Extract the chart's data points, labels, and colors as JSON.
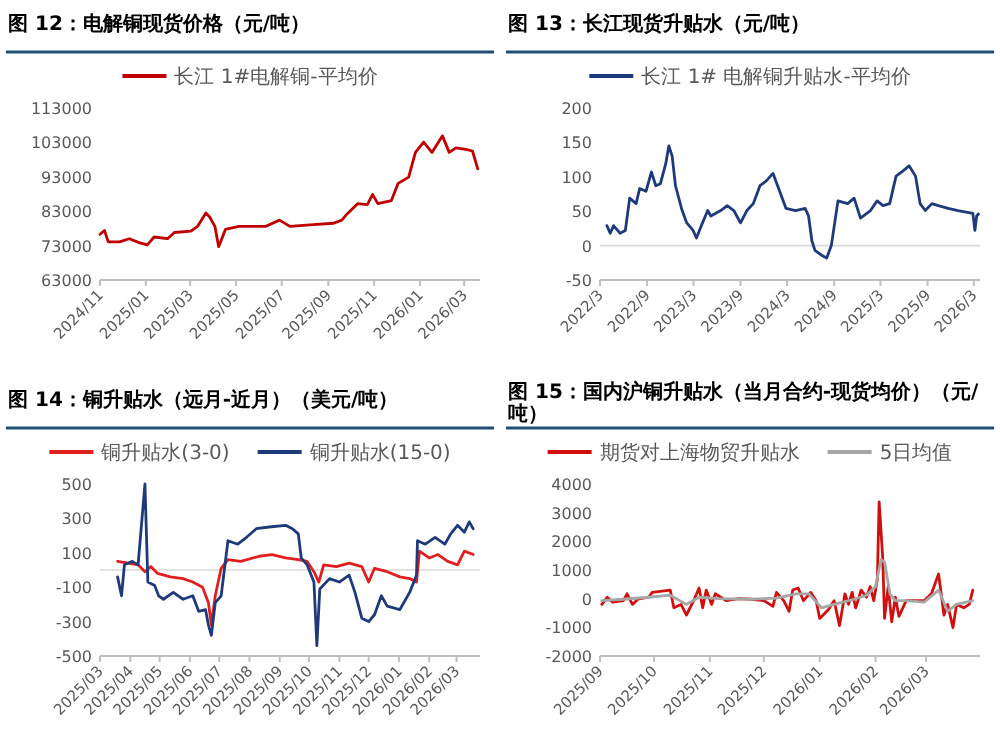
{
  "chart_data": [
    {
      "type": "line",
      "title": "图 12：电解铜现货价格（元/吨）",
      "legend": "top",
      "xlim": [
        "2024-11-01",
        "2026-03-22"
      ],
      "ylim": [
        63000,
        113000
      ],
      "yticks": [
        63000,
        73000,
        83000,
        93000,
        103000,
        113000
      ],
      "xticks": [
        {
          "value": "2024-11",
          "label": "2024/11"
        },
        {
          "value": "2025-01",
          "label": "2025/01"
        },
        {
          "value": "2025-03",
          "label": "2025/03"
        },
        {
          "value": "2025-05",
          "label": "2025/05"
        },
        {
          "value": "2025-07",
          "label": "2025/07"
        },
        {
          "value": "2025-09",
          "label": "2025/09"
        },
        {
          "value": "2025-11",
          "label": "2025/11"
        },
        {
          "value": "2026-01",
          "label": "2026/01"
        },
        {
          "value": "2026-03",
          "label": "2026/03"
        }
      ],
      "series": [
        {
          "name": "长江 1#电解铜-平均价",
          "color": "#c00000",
          "x": [
            "2024-11-01",
            "2024-11-07",
            "2024-11-12",
            "2024-11-27",
            "2024-12-10",
            "2024-12-24",
            "2025-01-03",
            "2025-01-12",
            "2025-01-30",
            "2025-02-08",
            "2025-03-02",
            "2025-03-11",
            "2025-03-22",
            "2025-03-27",
            "2025-04-03",
            "2025-04-08",
            "2025-04-17",
            "2025-05-05",
            "2025-06-10",
            "2025-06-28",
            "2025-07-12",
            "2025-08-12",
            "2025-09-08",
            "2025-09-19",
            "2025-09-26",
            "2025-10-10",
            "2025-10-23",
            "2025-10-30",
            "2025-11-06",
            "2025-11-24",
            "2025-12-03",
            "2025-12-17",
            "2025-12-26",
            "2026-01-06",
            "2026-01-17",
            "2026-01-31",
            "2026-02-09",
            "2026-02-18",
            "2026-03-03",
            "2026-03-12",
            "2026-03-19"
          ],
          "values": [
            76300,
            77400,
            74100,
            74100,
            75000,
            73800,
            73200,
            75500,
            75000,
            76800,
            77200,
            78600,
            82500,
            81300,
            78600,
            72700,
            77700,
            78600,
            78600,
            80400,
            78600,
            79100,
            79500,
            80400,
            82200,
            85200,
            84900,
            87900,
            85200,
            86100,
            91100,
            92900,
            100100,
            103100,
            100100,
            104900,
            100100,
            101400,
            101000,
            100500,
            95300
          ]
        }
      ]
    },
    {
      "type": "line",
      "title": "图 13：长江现货升贴水（元/吨）",
      "legend": "top",
      "xlim": [
        "2022-03-01",
        "2026-03-25"
      ],
      "ylim": [
        -50,
        200
      ],
      "yticks": [
        -50,
        0,
        50,
        100,
        150,
        200
      ],
      "ref_lines": [
        {
          "axis": "y",
          "value": 0,
          "color": "#d9d9d9"
        }
      ],
      "xticks": [
        {
          "value": "2022-03",
          "label": "2022/3"
        },
        {
          "value": "2022-09",
          "label": "2022/9"
        },
        {
          "value": "2023-03",
          "label": "2023/3"
        },
        {
          "value": "2023-09",
          "label": "2023/9"
        },
        {
          "value": "2024-03",
          "label": "2024/3"
        },
        {
          "value": "2024-09",
          "label": "2024/9"
        },
        {
          "value": "2025-03",
          "label": "2025/3"
        },
        {
          "value": "2025-09",
          "label": "2025/9"
        },
        {
          "value": "2026-03",
          "label": "2026/3"
        }
      ],
      "series": [
        {
          "name": "长江 1# 电解铜升贴水-平均价",
          "color": "#1f3a7a",
          "x": [
            "2022-03-28",
            "2022-04-10",
            "2022-04-23",
            "2022-05-18",
            "2022-06-08",
            "2022-06-25",
            "2022-07-20",
            "2022-08-03",
            "2022-08-28",
            "2022-09-18",
            "2022-10-05",
            "2022-10-23",
            "2022-11-13",
            "2022-11-25",
            "2022-12-08",
            "2022-12-21",
            "2023-01-16",
            "2023-02-03",
            "2023-02-28",
            "2023-03-13",
            "2023-04-01",
            "2023-04-26",
            "2023-05-08",
            "2023-06-16",
            "2023-07-11",
            "2023-08-06",
            "2023-09-01",
            "2023-09-26",
            "2023-10-21",
            "2023-11-16",
            "2023-12-11",
            "2024-01-06",
            "2024-02-01",
            "2024-02-26",
            "2024-04-03",
            "2024-05-11",
            "2024-05-24",
            "2024-06-06",
            "2024-06-18",
            "2024-07-14",
            "2024-08-03",
            "2024-08-21",
            "2024-09-16",
            "2024-10-24",
            "2024-11-18",
            "2024-12-13",
            "2025-01-21",
            "2025-02-16",
            "2025-03-11",
            "2025-04-06",
            "2025-05-01",
            "2025-05-26",
            "2025-06-21",
            "2025-07-16",
            "2025-08-03",
            "2025-08-23",
            "2025-09-18",
            "2025-10-13",
            "2025-11-21",
            "2025-12-29",
            "2026-02-25",
            "2026-03-05",
            "2026-03-12",
            "2026-03-19"
          ],
          "values": [
            29,
            18,
            29,
            18,
            22,
            69,
            61,
            83,
            79,
            107,
            87,
            90,
            119,
            145,
            130,
            87,
            51,
            33,
            22,
            11,
            29,
            51,
            43,
            51,
            58,
            51,
            33,
            51,
            61,
            87,
            94,
            105,
            79,
            54,
            51,
            54,
            43,
            7,
            -7,
            -14,
            -18,
            0,
            65,
            61,
            69,
            40,
            51,
            65,
            58,
            61,
            101,
            108,
            116,
            101,
            61,
            51,
            61,
            58,
            54,
            51,
            47,
            22,
            43,
            46
          ]
        }
      ]
    },
    {
      "type": "line",
      "title": "图 14：铜升贴水（远月-近月）（美元/吨）",
      "legend": "top",
      "xlim": [
        "2025-03-01",
        "2026-03-25"
      ],
      "ylim": [
        -500,
        500
      ],
      "yticks": [
        -500,
        -300,
        -100,
        100,
        300,
        500
      ],
      "ref_lines": [
        {
          "axis": "y",
          "value": 0,
          "color": "#d9d9d9"
        }
      ],
      "xticks": [
        {
          "value": "2025-03",
          "label": "2025/03"
        },
        {
          "value": "2025-04",
          "label": "2025/04"
        },
        {
          "value": "2025-05",
          "label": "2025/05"
        },
        {
          "value": "2025-06",
          "label": "2025/06"
        },
        {
          "value": "2025-07",
          "label": "2025/07"
        },
        {
          "value": "2025-08",
          "label": "2025/08"
        },
        {
          "value": "2025-09",
          "label": "2025/09"
        },
        {
          "value": "2025-10",
          "label": "2025/10"
        },
        {
          "value": "2025-11",
          "label": "2025/11"
        },
        {
          "value": "2025-12",
          "label": "2025/12"
        },
        {
          "value": "2026-01",
          "label": "2026/01"
        },
        {
          "value": "2026-02",
          "label": "2026/02"
        },
        {
          "value": "2026-03",
          "label": "2026/03"
        }
      ],
      "series": [
        {
          "name": "铜升贴水(3-0)",
          "color": "#e02020",
          "x": [
            "2025-03-19",
            "2025-03-30",
            "2025-04-09",
            "2025-04-16",
            "2025-04-22",
            "2025-04-29",
            "2025-05-12",
            "2025-05-25",
            "2025-06-04",
            "2025-06-14",
            "2025-06-20",
            "2025-06-23",
            "2025-06-27",
            "2025-07-03",
            "2025-07-10",
            "2025-07-23",
            "2025-08-11",
            "2025-08-24",
            "2025-09-07",
            "2025-09-20",
            "2025-09-29",
            "2025-10-06",
            "2025-10-11",
            "2025-10-16",
            "2025-10-29",
            "2025-11-11",
            "2025-11-24",
            "2025-12-01",
            "2025-12-07",
            "2025-12-20",
            "2026-01-02",
            "2026-01-12",
            "2026-01-19",
            "2026-01-22",
            "2026-02-01",
            "2026-02-10",
            "2026-02-20",
            "2026-03-02",
            "2026-03-09",
            "2026-03-18"
          ],
          "values": [
            50,
            40,
            30,
            -10,
            20,
            -20,
            -40,
            -50,
            -70,
            -100,
            -190,
            -320,
            -150,
            10,
            60,
            50,
            80,
            90,
            70,
            60,
            50,
            -10,
            -70,
            30,
            20,
            40,
            20,
            -70,
            10,
            -10,
            -40,
            -50,
            -70,
            110,
            70,
            90,
            50,
            30,
            110,
            90
          ]
        },
        {
          "name": "铜升贴水(15-0)",
          "color": "#1f3a7a",
          "x": [
            "2025-03-19",
            "2025-03-23",
            "2025-03-26",
            "2025-04-03",
            "2025-04-09",
            "2025-04-16",
            "2025-04-19",
            "2025-04-26",
            "2025-04-30",
            "2025-05-05",
            "2025-05-15",
            "2025-05-25",
            "2025-06-04",
            "2025-06-10",
            "2025-06-17",
            "2025-06-20",
            "2025-06-23",
            "2025-06-27",
            "2025-07-03",
            "2025-07-10",
            "2025-07-20",
            "2025-07-29",
            "2025-08-08",
            "2025-08-21",
            "2025-09-07",
            "2025-09-14",
            "2025-09-20",
            "2025-09-23",
            "2025-09-29",
            "2025-10-06",
            "2025-10-09",
            "2025-10-12",
            "2025-10-22",
            "2025-11-01",
            "2025-11-11",
            "2025-11-17",
            "2025-11-24",
            "2025-12-01",
            "2025-12-07",
            "2025-12-14",
            "2025-12-20",
            "2026-01-02",
            "2026-01-12",
            "2026-01-19",
            "2026-01-20",
            "2026-01-28",
            "2026-02-07",
            "2026-02-17",
            "2026-02-23",
            "2026-03-02",
            "2026-03-09",
            "2026-03-14",
            "2026-03-18"
          ],
          "values": [
            -40,
            -150,
            30,
            50,
            30,
            500,
            -70,
            -90,
            -150,
            -170,
            -130,
            -170,
            -150,
            -240,
            -230,
            -320,
            -380,
            -190,
            -150,
            170,
            150,
            190,
            240,
            250,
            260,
            240,
            210,
            70,
            30,
            -70,
            -440,
            -110,
            -50,
            -70,
            -30,
            -130,
            -280,
            -300,
            -260,
            -150,
            -210,
            -230,
            -130,
            -30,
            170,
            150,
            190,
            150,
            210,
            260,
            220,
            280,
            240
          ]
        }
      ]
    },
    {
      "type": "line",
      "title": "图 15：国内沪铜升贴水（当月合约-现货均价）（元/吨）",
      "legend": "top",
      "xlim": [
        "2025-09-01",
        "2026-03-31"
      ],
      "ylim": [
        -2000,
        4000
      ],
      "yticks": [
        -2000,
        -1000,
        0,
        1000,
        2000,
        3000,
        4000
      ],
      "xticks": [
        {
          "value": "2025-09",
          "label": "2025/09"
        },
        {
          "value": "2025-10",
          "label": "2025/10"
        },
        {
          "value": "2025-11",
          "label": "2025/11"
        },
        {
          "value": "2025-12",
          "label": "2025/12"
        },
        {
          "value": "2026-01",
          "label": "2026/01"
        },
        {
          "value": "2026-02",
          "label": "2026/02"
        },
        {
          "value": "2026-03",
          "label": "2026/03"
        }
      ],
      "series": [
        {
          "name": "期货对上海物贸升贴水",
          "color": "#d01010",
          "x": [
            "2025-09-02",
            "2025-09-05",
            "2025-09-08",
            "2025-09-14",
            "2025-09-16",
            "2025-09-19",
            "2025-09-22",
            "2025-09-28",
            "2025-09-30",
            "2025-10-10",
            "2025-10-12",
            "2025-10-16",
            "2025-10-19",
            "2025-10-23",
            "2025-10-26",
            "2025-10-28",
            "2025-10-30",
            "2025-11-02",
            "2025-11-04",
            "2025-11-10",
            "2025-11-17",
            "2025-11-24",
            "2025-12-01",
            "2025-12-06",
            "2025-12-08",
            "2025-12-12",
            "2025-12-15",
            "2025-12-17",
            "2025-12-20",
            "2025-12-23",
            "2025-12-27",
            "2025-12-30",
            "2026-01-01",
            "2026-01-06",
            "2026-01-09",
            "2026-01-12",
            "2026-01-15",
            "2026-01-17",
            "2026-01-19",
            "2026-01-21",
            "2026-01-24",
            "2026-01-27",
            "2026-01-29",
            "2026-01-31",
            "2026-02-02",
            "2026-02-03",
            "2026-02-05",
            "2026-02-06",
            "2026-02-08",
            "2026-02-10",
            "2026-02-12",
            "2026-02-14",
            "2026-02-18",
            "2026-02-28",
            "2026-03-04",
            "2026-03-08",
            "2026-03-11",
            "2026-03-13",
            "2026-03-16",
            "2026-03-18",
            "2026-03-22",
            "2026-03-25",
            "2026-03-27"
          ],
          "values": [
            -200,
            50,
            -120,
            -70,
            170,
            -200,
            -20,
            50,
            220,
            300,
            -320,
            -200,
            -570,
            -70,
            370,
            -320,
            300,
            -200,
            170,
            -70,
            0,
            -20,
            -70,
            -270,
            220,
            -70,
            -440,
            300,
            370,
            -70,
            220,
            -70,
            -690,
            -370,
            -70,
            -940,
            170,
            -200,
            220,
            -320,
            300,
            50,
            420,
            -70,
            670,
            3380,
            1410,
            -690,
            420,
            -810,
            50,
            -620,
            -70,
            -70,
            170,
            860,
            -570,
            -200,
            -1010,
            -200,
            -320,
            -200,
            300
          ]
        },
        {
          "name": "5日均值",
          "color": "#a6a6a6",
          "x": [
            "2025-09-02",
            "2025-09-14",
            "2025-09-28",
            "2025-10-10",
            "2025-10-19",
            "2025-10-26",
            "2025-11-06",
            "2025-11-24",
            "2025-12-08",
            "2025-12-19",
            "2025-12-26",
            "2026-01-02",
            "2026-01-09",
            "2026-01-20",
            "2026-01-27",
            "2026-02-01",
            "2026-02-04",
            "2026-02-06",
            "2026-02-09",
            "2026-02-12",
            "2026-02-18",
            "2026-02-28",
            "2026-03-08",
            "2026-03-13",
            "2026-03-18",
            "2026-03-27"
          ],
          "values": [
            -70,
            -20,
            50,
            120,
            -200,
            50,
            0,
            -20,
            20,
            170,
            170,
            -320,
            -200,
            -20,
            120,
            420,
            1360,
            1280,
            170,
            -70,
            -70,
            -120,
            300,
            -440,
            -200,
            -70
          ]
        }
      ]
    }
  ]
}
